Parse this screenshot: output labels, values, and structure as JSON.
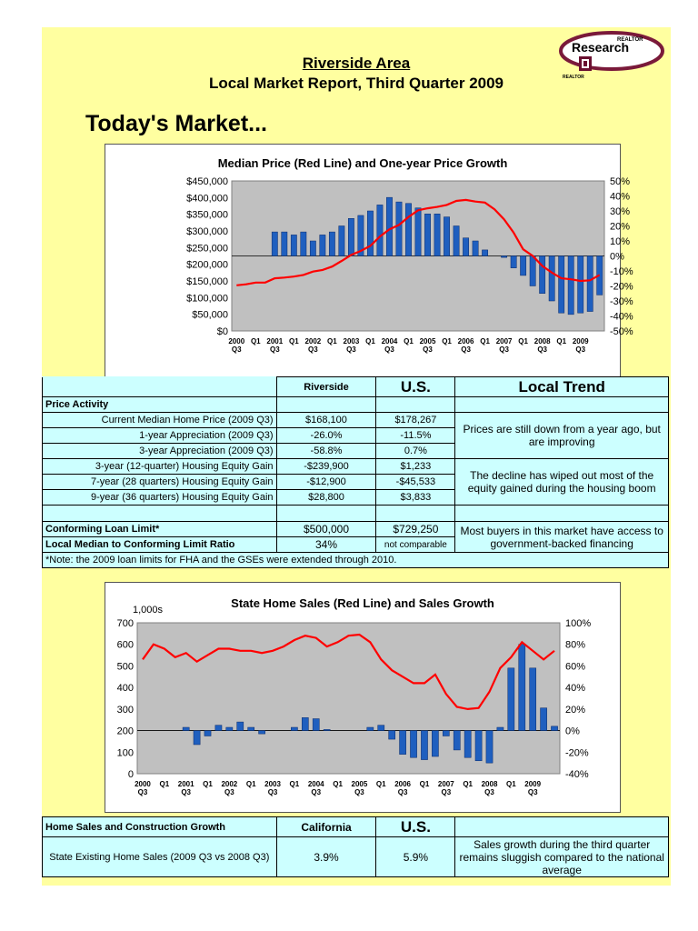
{
  "header": {
    "title": "Riverside Area",
    "subtitle": "Local Market Report, Third Quarter 2009",
    "heading": "Today's Market..."
  },
  "logo": {
    "line1": "REALTOR",
    "line2": "Research",
    "line3": "REALTOR"
  },
  "colors": {
    "page_bg": "#ffffa0",
    "bar": "#1f5fbf",
    "line": "#ff0000",
    "table_bg": "#ccffff"
  },
  "table1": {
    "col_riverside": "Riverside",
    "col_us": "U.S.",
    "col_trend": "Local Trend",
    "section_price": "Price Activity",
    "rows_price": [
      {
        "label": "Current Median Home Price (2009 Q3)",
        "local": "$168,100",
        "us": "$178,267"
      },
      {
        "label": "1-year Appreciation (2009 Q3)",
        "local": "-26.0%",
        "us": "-11.5%"
      },
      {
        "label": "3-year Appreciation (2009 Q3)",
        "local": "-58.8%",
        "us": "0.7%"
      }
    ],
    "trend_price": "Prices are still down from a year ago, but are improving",
    "rows_equity": [
      {
        "label": "3-year (12-quarter) Housing Equity Gain",
        "local": "-$239,900",
        "us": "$1,233"
      },
      {
        "label": "7-year (28 quarters) Housing Equity Gain",
        "local": "-$12,900",
        "us": "-$45,533"
      },
      {
        "label": "9-year (36 quarters) Housing Equity Gain",
        "local": "$28,800",
        "us": "$3,833"
      }
    ],
    "trend_equity": "The decline has wiped out most of the equity gained during the housing boom",
    "loan_label": "Conforming Loan Limit*",
    "loan_local": "$500,000",
    "loan_us": "$729,250",
    "ratio_label": "Local Median to Conforming Limit Ratio",
    "ratio_local": "34%",
    "ratio_us": "not comparable",
    "trend_loan": "Most buyers in this market have access to government-backed financing",
    "note": "*Note: the 2009 loan limits for FHA and the GSEs were extended through 2010."
  },
  "table2": {
    "header_label": "Home Sales and Construction Growth",
    "col_state": "California",
    "col_us": "U.S.",
    "row_label": "State Existing Home Sales (2009 Q3 vs 2008 Q3)",
    "row_local": "3.9%",
    "row_us": "5.9%",
    "trend": "Sales growth during the third quarter remains sluggish compared to the national average"
  },
  "chart_data": [
    {
      "type": "bar",
      "title": "Median Price (Red Line) and One-year Price Growth",
      "x_tick_labels": [
        "2000 Q3",
        "Q1",
        "2001 Q3",
        "Q1",
        "2002 Q3",
        "Q1",
        "2003 Q3",
        "Q1",
        "2004 Q3",
        "Q1",
        "2005 Q3",
        "Q1",
        "2006 Q3",
        "Q1",
        "2007 Q3",
        "Q1",
        "2008 Q3",
        "Q1",
        "2009 Q3"
      ],
      "y_left_ticks": [
        "$0",
        "$50,000",
        "$100,000",
        "$150,000",
        "$200,000",
        "$250,000",
        "$300,000",
        "$350,000",
        "$400,000",
        "$450,000"
      ],
      "y_right_ticks": [
        "-50%",
        "-40%",
        "-30%",
        "-20%",
        "-10%",
        "0%",
        "10%",
        "20%",
        "30%",
        "40%",
        "50%"
      ],
      "ylim_left": [
        0,
        450000
      ],
      "ylim_right": [
        -50,
        50
      ],
      "grid": false,
      "series": [
        {
          "name": "One-year Price Growth",
          "axis": "right",
          "kind": "bar",
          "values": [
            0,
            0,
            0,
            0,
            16,
            16,
            14,
            16,
            10,
            14,
            16,
            20,
            25,
            27,
            30,
            34,
            39,
            36,
            35,
            32,
            28,
            28,
            26,
            20,
            12,
            10,
            4,
            0,
            -1,
            -8,
            -13,
            -20,
            -25,
            -30,
            -38,
            -39,
            -38,
            -37,
            -26
          ]
        },
        {
          "name": "Median Price",
          "axis": "left",
          "kind": "line",
          "values": [
            137000,
            140000,
            145000,
            145000,
            158000,
            160000,
            163000,
            168000,
            178000,
            183000,
            193000,
            210000,
            228000,
            240000,
            255000,
            283000,
            305000,
            318000,
            342000,
            362000,
            368000,
            372000,
            378000,
            390000,
            393000,
            388000,
            385000,
            365000,
            335000,
            295000,
            245000,
            225000,
            195000,
            175000,
            158000,
            155000,
            150000,
            152000,
            168000
          ]
        }
      ]
    },
    {
      "type": "bar",
      "title": "State Home Sales (Red Line) and Sales Growth",
      "y_left_unit": "1,000s",
      "x_tick_labels": [
        "2000 Q3",
        "Q1",
        "2001 Q3",
        "Q1",
        "2002 Q3",
        "Q1",
        "2003 Q3",
        "Q1",
        "2004 Q3",
        "Q1",
        "2005 Q3",
        "Q1",
        "2006 Q3",
        "Q1",
        "2007 Q3",
        "Q1",
        "2008 Q3",
        "Q1",
        "2009 Q3"
      ],
      "y_left_ticks": [
        "0",
        "100",
        "200",
        "300",
        "400",
        "500",
        "600",
        "700"
      ],
      "y_right_ticks": [
        "-40%",
        "-20%",
        "0%",
        "20%",
        "40%",
        "60%",
        "80%",
        "100%"
      ],
      "ylim_left": [
        0,
        700
      ],
      "ylim_right": [
        -40,
        100
      ],
      "grid": false,
      "series": [
        {
          "name": "Sales Growth",
          "axis": "right",
          "kind": "bar",
          "values": [
            0,
            0,
            0,
            0,
            3,
            -13,
            -5,
            5,
            3,
            8,
            3,
            -3,
            0,
            0,
            3,
            12,
            11,
            1,
            0,
            0,
            0,
            3,
            5,
            -8,
            -22,
            -25,
            -27,
            -24,
            -5,
            -18,
            -25,
            -28,
            -30,
            3,
            58,
            80,
            58,
            21,
            4
          ]
        },
        {
          "name": "State Home Sales",
          "axis": "left",
          "kind": "line",
          "values": [
            530,
            600,
            580,
            540,
            560,
            520,
            550,
            580,
            580,
            570,
            570,
            560,
            570,
            590,
            620,
            640,
            630,
            590,
            610,
            640,
            645,
            610,
            530,
            480,
            450,
            420,
            420,
            460,
            370,
            310,
            300,
            305,
            380,
            490,
            540,
            610,
            570,
            530,
            570
          ]
        }
      ]
    }
  ]
}
